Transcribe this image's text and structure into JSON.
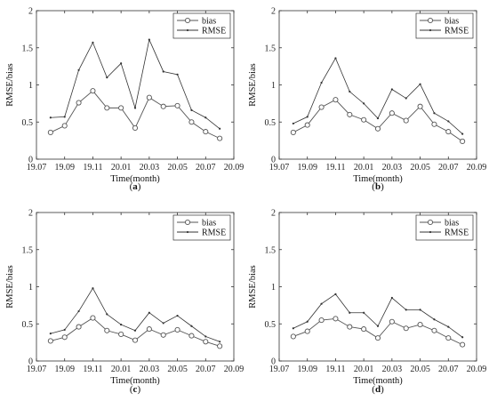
{
  "figure": {
    "panels": [
      "a",
      "b",
      "c",
      "d"
    ]
  },
  "chart_data": [
    {
      "type": "line",
      "panel_label": "a",
      "xlabel": "Time(month)",
      "ylabel": "RMSE/bias",
      "xlim": [
        19.07,
        20.09
      ],
      "ylim": [
        0,
        2
      ],
      "xticks": [
        "19.07",
        "19.09",
        "19.11",
        "20.01",
        "20.03",
        "20.05",
        "20.07",
        "20.09"
      ],
      "yticks": [
        "0",
        "0.5",
        "1",
        "1.5",
        "2"
      ],
      "legend_position": "top-right",
      "x": [
        "19.08",
        "19.09",
        "19.10",
        "19.11",
        "19.12",
        "20.01",
        "20.02",
        "20.03",
        "20.04",
        "20.05",
        "20.06",
        "20.07",
        "20.08"
      ],
      "series": [
        {
          "name": "bias",
          "marker": "circle",
          "values": [
            0.36,
            0.45,
            0.76,
            0.92,
            0.69,
            0.69,
            0.42,
            0.83,
            0.71,
            0.72,
            0.5,
            0.37,
            0.28
          ]
        },
        {
          "name": "RMSE",
          "marker": "dot",
          "values": [
            0.56,
            0.57,
            1.2,
            1.57,
            1.1,
            1.29,
            0.69,
            1.61,
            1.18,
            1.14,
            0.66,
            0.56,
            0.41
          ]
        }
      ]
    },
    {
      "type": "line",
      "panel_label": "b",
      "xlabel": "Time(month)",
      "ylabel": "RMSE/bias",
      "xlim": [
        19.07,
        20.09
      ],
      "ylim": [
        0,
        2
      ],
      "xticks": [
        "19.07",
        "19.09",
        "19.11",
        "20.01",
        "20.03",
        "20.05",
        "20.07",
        "20.09"
      ],
      "yticks": [
        "0",
        "0.5",
        "1",
        "1.5",
        "2"
      ],
      "legend_position": "top-right",
      "x": [
        "19.08",
        "19.09",
        "19.10",
        "19.11",
        "19.12",
        "20.01",
        "20.02",
        "20.03",
        "20.04",
        "20.05",
        "20.06",
        "20.07",
        "20.08"
      ],
      "series": [
        {
          "name": "bias",
          "marker": "circle",
          "values": [
            0.36,
            0.46,
            0.7,
            0.8,
            0.6,
            0.53,
            0.41,
            0.62,
            0.52,
            0.71,
            0.47,
            0.37,
            0.24
          ]
        },
        {
          "name": "RMSE",
          "marker": "dot",
          "values": [
            0.48,
            0.57,
            1.03,
            1.36,
            0.91,
            0.75,
            0.55,
            0.94,
            0.82,
            1.01,
            0.62,
            0.51,
            0.34
          ]
        }
      ]
    },
    {
      "type": "line",
      "panel_label": "c",
      "xlabel": "Time(month)",
      "ylabel": "RMSE/bias",
      "xlim": [
        19.07,
        20.09
      ],
      "ylim": [
        0,
        2
      ],
      "xticks": [
        "19.07",
        "19.09",
        "19.11",
        "20.01",
        "20.03",
        "20.05",
        "20.07",
        "20.09"
      ],
      "yticks": [
        "0",
        "0.5",
        "1",
        "1.5",
        "2"
      ],
      "legend_position": "top-right",
      "x": [
        "19.08",
        "19.09",
        "19.10",
        "19.11",
        "19.12",
        "20.01",
        "20.02",
        "20.03",
        "20.04",
        "20.05",
        "20.06",
        "20.07",
        "20.08"
      ],
      "series": [
        {
          "name": "bias",
          "marker": "circle",
          "values": [
            0.27,
            0.32,
            0.46,
            0.58,
            0.41,
            0.36,
            0.28,
            0.43,
            0.35,
            0.42,
            0.34,
            0.26,
            0.2
          ]
        },
        {
          "name": "RMSE",
          "marker": "dot",
          "values": [
            0.37,
            0.42,
            0.67,
            0.98,
            0.63,
            0.49,
            0.41,
            0.65,
            0.51,
            0.61,
            0.47,
            0.33,
            0.26
          ]
        }
      ]
    },
    {
      "type": "line",
      "panel_label": "d",
      "xlabel": "Time(month)",
      "ylabel": "RMSE/bias",
      "xlim": [
        19.07,
        20.09
      ],
      "ylim": [
        0,
        2
      ],
      "xticks": [
        "19.07",
        "19.09",
        "19.11",
        "20.01",
        "20.03",
        "20.05",
        "20.07",
        "20.09"
      ],
      "yticks": [
        "0",
        "0.5",
        "1",
        "1.5",
        "2"
      ],
      "legend_position": "top-right",
      "x": [
        "19.08",
        "19.09",
        "19.10",
        "19.11",
        "19.12",
        "20.01",
        "20.02",
        "20.03",
        "20.04",
        "20.05",
        "20.06",
        "20.07",
        "20.08"
      ],
      "series": [
        {
          "name": "bias",
          "marker": "circle",
          "values": [
            0.33,
            0.4,
            0.55,
            0.57,
            0.46,
            0.43,
            0.31,
            0.53,
            0.44,
            0.49,
            0.41,
            0.31,
            0.22
          ]
        },
        {
          "name": "RMSE",
          "marker": "dot",
          "values": [
            0.44,
            0.53,
            0.77,
            0.9,
            0.65,
            0.65,
            0.47,
            0.85,
            0.69,
            0.69,
            0.56,
            0.46,
            0.32
          ]
        }
      ]
    }
  ]
}
